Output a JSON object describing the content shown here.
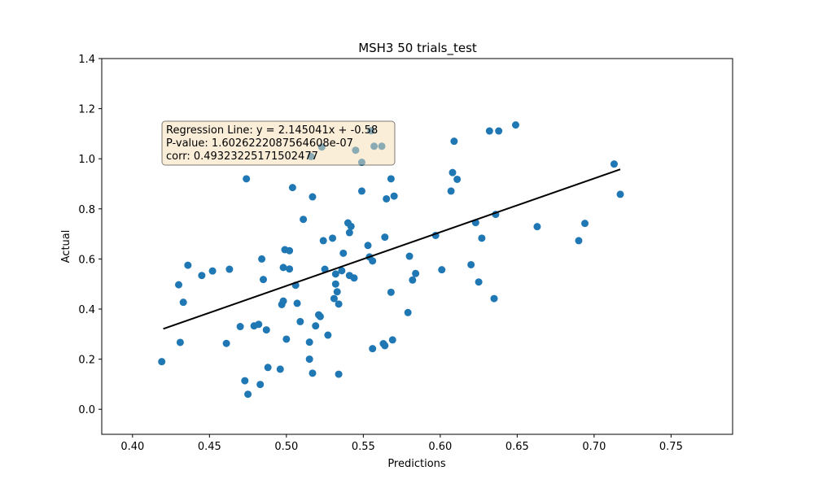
{
  "chart_data": {
    "type": "scatter",
    "title": "MSH3 50 trials_test",
    "xlabel": "Predictions",
    "ylabel": "Actual",
    "xlim": [
      0.38,
      0.79
    ],
    "ylim": [
      -0.1,
      1.4
    ],
    "xticks": [
      "0.40",
      "0.45",
      "0.50",
      "0.55",
      "0.60",
      "0.65",
      "0.70",
      "0.75"
    ],
    "yticks": [
      "0.0",
      "0.2",
      "0.4",
      "0.6",
      "0.8",
      "1.0",
      "1.2",
      "1.4"
    ],
    "point_color": "#1f77b4",
    "line_color": "#000000",
    "regression": {
      "slope": 2.145041,
      "intercept": -0.58,
      "x_start": 0.42,
      "x_end": 0.717
    },
    "annotation": {
      "lines": [
        "Regression Line: y = 2.145041x + -0.58",
        "P-value: 1.6026222087564608e-07",
        "corr: 0.4932322517150247​7"
      ],
      "box_color": "#f5deb3"
    },
    "points": [
      [
        0.419,
        0.19
      ],
      [
        0.43,
        0.497
      ],
      [
        0.431,
        0.267
      ],
      [
        0.433,
        0.427
      ],
      [
        0.436,
        0.575
      ],
      [
        0.445,
        0.534
      ],
      [
        0.452,
        0.552
      ],
      [
        0.461,
        0.263
      ],
      [
        0.463,
        0.559
      ],
      [
        0.47,
        0.33
      ],
      [
        0.473,
        0.114
      ],
      [
        0.474,
        0.92
      ],
      [
        0.475,
        0.06
      ],
      [
        0.479,
        0.333
      ],
      [
        0.482,
        0.339
      ],
      [
        0.483,
        0.099
      ],
      [
        0.484,
        0.6
      ],
      [
        0.485,
        0.518
      ],
      [
        0.487,
        0.317
      ],
      [
        0.488,
        0.167
      ],
      [
        0.496,
        0.16
      ],
      [
        0.497,
        0.418
      ],
      [
        0.498,
        0.432
      ],
      [
        0.498,
        0.566
      ],
      [
        0.499,
        0.637
      ],
      [
        0.5,
        0.28
      ],
      [
        0.502,
        0.633
      ],
      [
        0.502,
        0.56
      ],
      [
        0.504,
        0.885
      ],
      [
        0.506,
        0.495
      ],
      [
        0.507,
        0.423
      ],
      [
        0.509,
        0.35
      ],
      [
        0.511,
        0.758
      ],
      [
        0.515,
        0.268
      ],
      [
        0.515,
        0.2
      ],
      [
        0.516,
        1.009
      ],
      [
        0.517,
        0.144
      ],
      [
        0.517,
        0.848
      ],
      [
        0.519,
        0.333
      ],
      [
        0.521,
        0.377
      ],
      [
        0.522,
        0.37
      ],
      [
        0.523,
        1.047
      ],
      [
        0.524,
        0.673
      ],
      [
        0.525,
        0.559
      ],
      [
        0.527,
        0.296
      ],
      [
        0.53,
        0.683
      ],
      [
        0.531,
        0.442
      ],
      [
        0.532,
        0.54
      ],
      [
        0.532,
        0.5
      ],
      [
        0.533,
        0.469
      ],
      [
        0.534,
        0.14
      ],
      [
        0.534,
        0.42
      ],
      [
        0.536,
        0.553
      ],
      [
        0.537,
        0.623
      ],
      [
        0.54,
        0.744
      ],
      [
        0.541,
        0.705
      ],
      [
        0.541,
        0.534
      ],
      [
        0.542,
        0.73
      ],
      [
        0.544,
        0.524
      ],
      [
        0.545,
        1.034
      ],
      [
        0.549,
        0.986
      ],
      [
        0.549,
        0.871
      ],
      [
        0.553,
        0.654
      ],
      [
        0.554,
        0.608
      ],
      [
        0.555,
        1.112
      ],
      [
        0.556,
        0.592
      ],
      [
        0.556,
        0.242
      ],
      [
        0.557,
        1.05
      ],
      [
        0.562,
        1.05
      ],
      [
        0.563,
        0.262
      ],
      [
        0.564,
        0.254
      ],
      [
        0.564,
        0.687
      ],
      [
        0.565,
        0.84
      ],
      [
        0.568,
        0.92
      ],
      [
        0.568,
        0.467
      ],
      [
        0.569,
        0.277
      ],
      [
        0.57,
        0.851
      ],
      [
        0.579,
        0.386
      ],
      [
        0.58,
        0.611
      ],
      [
        0.582,
        0.516
      ],
      [
        0.584,
        0.542
      ],
      [
        0.597,
        0.694
      ],
      [
        0.601,
        0.557
      ],
      [
        0.607,
        0.871
      ],
      [
        0.608,
        0.945
      ],
      [
        0.609,
        1.07
      ],
      [
        0.611,
        0.918
      ],
      [
        0.62,
        0.577
      ],
      [
        0.623,
        0.745
      ],
      [
        0.625,
        0.508
      ],
      [
        0.627,
        0.683
      ],
      [
        0.632,
        1.111
      ],
      [
        0.635,
        0.442
      ],
      [
        0.636,
        0.778
      ],
      [
        0.638,
        1.111
      ],
      [
        0.649,
        1.135
      ],
      [
        0.663,
        0.729
      ],
      [
        0.69,
        0.673
      ],
      [
        0.694,
        0.742
      ],
      [
        0.713,
        0.979
      ],
      [
        0.717,
        0.858
      ]
    ]
  }
}
